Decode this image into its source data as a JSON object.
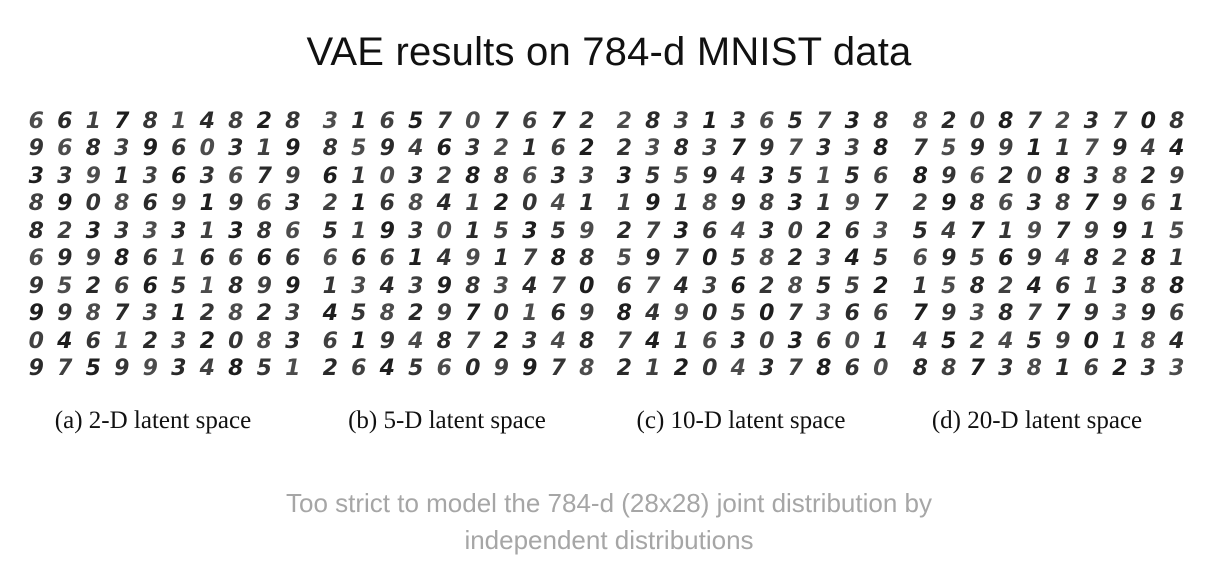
{
  "title": "VAE results on 784-d MNIST data",
  "panels": [
    {
      "caption": "(a) 2-D latent space",
      "rows": [
        "6617814828",
        "9683960319",
        "3391363679",
        "8908691963",
        "8233331386",
        "6998616666",
        "9526651899",
        "9987312823",
        "0461232083",
        "9759934851"
      ]
    },
    {
      "caption": "(b) 5-D latent space",
      "rows": [
        "3165707672",
        "8594632162",
        "6103288633",
        "2168412041",
        "5193015359",
        "6661491788",
        "1343983470",
        "4582970169",
        "6194872348",
        "2645609978"
      ]
    },
    {
      "caption": "(c) 10-D latent space",
      "rows": [
        "2831365738",
        "2383797338",
        "3559435156",
        "1918983197",
        "2736430263",
        "5970582345",
        "6743628552",
        "8490507366",
        "7416303601",
        "2120437860"
      ]
    },
    {
      "caption": "(d) 20-D latent space",
      "rows": [
        "8208723708",
        "7599117944",
        "8962083829",
        "2986387961",
        "5471979915",
        "6956948281",
        "1582461388",
        "7938779396",
        "4524590184",
        "8873816233"
      ]
    }
  ],
  "footer": {
    "line1": "Too strict to model the 784-d (28x28) joint distribution by",
    "line2": "independent distributions"
  }
}
